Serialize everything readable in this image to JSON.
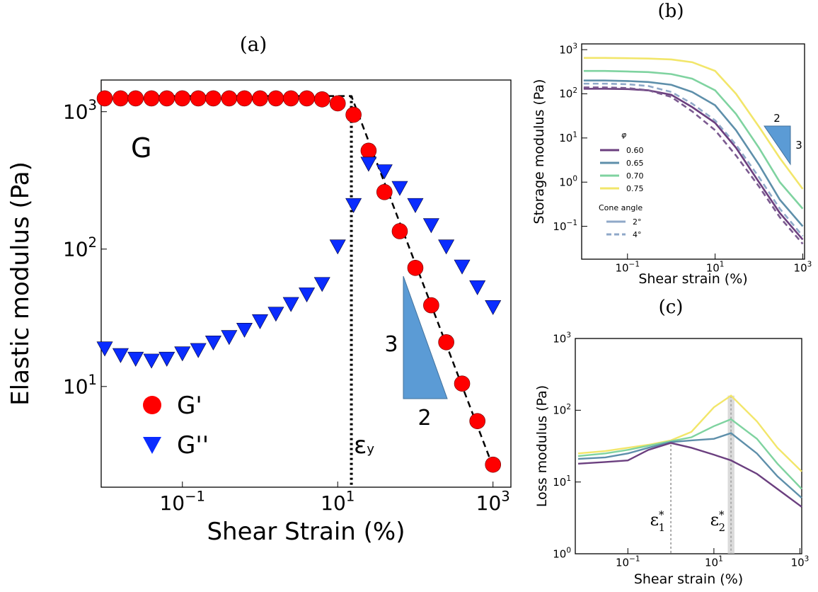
{
  "chart_data": [
    {
      "type": "scatter",
      "title": "(a)",
      "xlabel": "Shear Strain (%)",
      "ylabel": "Elastic modulus (Pa)",
      "log_x": true,
      "log_y": true,
      "xlim": [
        0.009,
        1700
      ],
      "ylim": [
        1.85,
        1700
      ],
      "xticks": [
        {
          "value": 0.1,
          "base": "10",
          "exp": "−1"
        },
        {
          "value": 10,
          "base": "10",
          "exp": "1"
        },
        {
          "value": 1000,
          "base": "10",
          "exp": "3"
        }
      ],
      "yticks": [
        {
          "value": 10,
          "base": "10",
          "exp": "1"
        },
        {
          "value": 100,
          "base": "10",
          "exp": "2"
        },
        {
          "value": 1000,
          "base": "10",
          "exp": "3"
        }
      ],
      "x": [
        0.01,
        0.016,
        0.025,
        0.04,
        0.063,
        0.1,
        0.16,
        0.25,
        0.4,
        0.63,
        1,
        1.6,
        2.5,
        4,
        6.3,
        10,
        16,
        25,
        40,
        63,
        100,
        160,
        250,
        400,
        630,
        1000
      ],
      "series": [
        {
          "name": "G'",
          "color": "#ff0000",
          "marker": "circle",
          "values": [
            1250,
            1250,
            1250,
            1250,
            1250,
            1250,
            1250,
            1250,
            1250,
            1250,
            1250,
            1250,
            1250,
            1250,
            1230,
            1150,
            950,
            520,
            260,
            135,
            73,
            39,
            21,
            10.5,
            5.6,
            2.7
          ]
        },
        {
          "name": "G''",
          "color": "#0a2cff",
          "marker": "triangle",
          "values": [
            19,
            17,
            16,
            15.5,
            16,
            17.5,
            18.5,
            21,
            23,
            26,
            30,
            34,
            40,
            47,
            56,
            105,
            210,
            420,
            370,
            280,
            210,
            150,
            105,
            75,
            53,
            38
          ]
        }
      ],
      "fit": {
        "x": [
          0.01,
          15,
          1000
        ],
        "values": [
          1300,
          1300,
          2.6
        ]
      },
      "yield_strain": 15,
      "annotations": {
        "modulus": "G",
        "yield": {
          "text": "ε",
          "sub": "y"
        },
        "slope_rise": "3",
        "slope_run": "2"
      }
    },
    {
      "type": "line",
      "title": "(b)",
      "xlabel": "Shear strain (%)",
      "ylabel": "Storage modulus (Pa)",
      "log_x": true,
      "log_y": true,
      "xlim": [
        0.009,
        1100
      ],
      "ylim": [
        0.018,
        1350
      ],
      "xticks": [
        {
          "value": 0.1,
          "base": "10",
          "exp": "−1"
        },
        {
          "value": 10,
          "base": "10",
          "exp": "1"
        },
        {
          "value": 1000,
          "base": "10",
          "exp": "3"
        }
      ],
      "yticks": [
        {
          "value": 0.1,
          "base": "10",
          "exp": "−1"
        },
        {
          "value": 1,
          "base": "10",
          "exp": "0"
        },
        {
          "value": 10,
          "base": "10",
          "exp": "1"
        },
        {
          "value": 100,
          "base": "10",
          "exp": "2"
        },
        {
          "value": 1000,
          "base": "10",
          "exp": "3"
        }
      ],
      "x": [
        0.01,
        0.03,
        0.1,
        0.3,
        1,
        3,
        10,
        30,
        100,
        300,
        1000
      ],
      "series": [
        {
          "name": "0.75",
          "cone": "2°",
          "color": "#f2e66a",
          "values": [
            650,
            650,
            640,
            630,
            600,
            520,
            330,
            100,
            18,
            3.5,
            0.7
          ]
        },
        {
          "name": "0.70",
          "cone": "2°",
          "color": "#7fd3a0",
          "values": [
            330,
            330,
            320,
            310,
            280,
            220,
            120,
            35,
            6,
            1,
            0.25
          ]
        },
        {
          "name": "0.65",
          "cone": "2°",
          "color": "#5e8faa",
          "values": [
            200,
            200,
            195,
            185,
            160,
            110,
            55,
            15,
            2.5,
            0.4,
            0.1
          ]
        },
        {
          "name": "0.60",
          "cone": "2°",
          "color": "#6b3f7f",
          "values": [
            130,
            130,
            128,
            120,
            95,
            50,
            22,
            6,
            1,
            0.2,
            0.05
          ]
        },
        {
          "name": "0.65",
          "cone": "4°",
          "color": "#8fa8c8",
          "values": [
            170,
            170,
            165,
            150,
            110,
            60,
            25,
            7,
            1.3,
            0.25,
            0.06
          ]
        },
        {
          "name": "0.60",
          "cone": "4°",
          "color": "#7b5a90",
          "values": [
            140,
            140,
            135,
            120,
            85,
            40,
            15,
            4,
            0.8,
            0.16,
            0.04
          ]
        }
      ],
      "legend": {
        "title": "φ",
        "entries": [
          {
            "name": "0.60",
            "color": "#6b3f7f"
          },
          {
            "name": "0.65",
            "color": "#5e8faa"
          },
          {
            "name": "0.70",
            "color": "#7fd3a0"
          },
          {
            "name": "0.75",
            "color": "#f2e66a"
          }
        ],
        "style_title": "Cone angle",
        "styles": [
          {
            "name": "2°",
            "dashed": false
          },
          {
            "name": "4°",
            "dashed": true
          }
        ]
      },
      "annotations": {
        "slope_run": "2",
        "slope_rise": "3"
      }
    },
    {
      "type": "line",
      "title": "(c)",
      "xlabel": "Shear strain (%)",
      "ylabel": "Loss modulus (Pa)",
      "log_x": true,
      "log_y": true,
      "xlim": [
        0.006,
        1100
      ],
      "ylim": [
        1,
        1000
      ],
      "xticks": [
        {
          "value": 0.1,
          "base": "10",
          "exp": "−1"
        },
        {
          "value": 10,
          "base": "10",
          "exp": "1"
        },
        {
          "value": 1000,
          "base": "10",
          "exp": "3"
        }
      ],
      "yticks": [
        {
          "value": 1,
          "base": "10",
          "exp": "0"
        },
        {
          "value": 10,
          "base": "10",
          "exp": "1"
        },
        {
          "value": 100,
          "base": "10",
          "exp": "2"
        },
        {
          "value": 1000,
          "base": "10",
          "exp": "3"
        }
      ],
      "x": [
        0.007,
        0.03,
        0.1,
        0.3,
        1,
        3,
        10,
        25,
        100,
        300,
        1100
      ],
      "series": [
        {
          "name": "0.75",
          "color": "#f2e66a",
          "values": [
            25,
            27,
            30,
            33,
            38,
            50,
            110,
            160,
            70,
            30,
            14
          ]
        },
        {
          "name": "0.70",
          "color": "#7fd3a0",
          "values": [
            23,
            25,
            28,
            32,
            37,
            42,
            60,
            75,
            40,
            18,
            8
          ]
        },
        {
          "name": "0.65",
          "color": "#5e8faa",
          "values": [
            21,
            22,
            25,
            30,
            36,
            38,
            40,
            48,
            25,
            12,
            6
          ]
        },
        {
          "name": "0.60",
          "color": "#6b3f7f",
          "values": [
            18,
            19,
            20,
            28,
            35,
            30,
            24,
            20,
            13,
            8,
            4.5
          ]
        }
      ],
      "annotations": [
        {
          "text": "ε",
          "sup": "*",
          "sub": "1",
          "x": 1
        },
        {
          "text": "ε",
          "sup": "*",
          "sub": "2",
          "x": 25,
          "band": [
            21,
            30
          ]
        }
      ]
    }
  ]
}
